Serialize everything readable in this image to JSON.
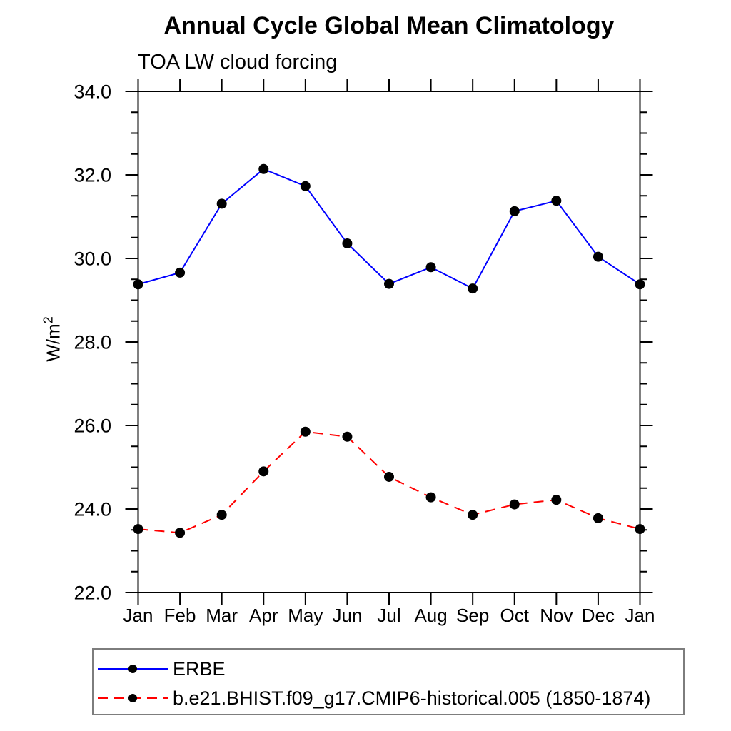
{
  "title": "Annual Cycle Global Mean Climatology",
  "subtitle": "TOA LW cloud forcing",
  "y_axis": {
    "label_base": "W/m",
    "label_exponent": "2"
  },
  "colors": {
    "axis": "#000000",
    "background": "#ffffff",
    "erbe_line": "#0000ff",
    "model_line": "#ff0000",
    "marker": "#000000",
    "legend_border": "#7d7d7d"
  },
  "chart_data": {
    "type": "line",
    "title": "Annual Cycle Global Mean Climatology",
    "subtitle": "TOA LW cloud forcing",
    "xlabel": "",
    "ylabel": "W/m^2",
    "categories": [
      "Jan",
      "Feb",
      "Mar",
      "Apr",
      "May",
      "Jun",
      "Jul",
      "Aug",
      "Sep",
      "Oct",
      "Nov",
      "Dec",
      "Jan"
    ],
    "series": [
      {
        "name": "ERBE",
        "color": "#0000ff",
        "line_style": "solid",
        "marker": "filled-circle",
        "marker_color": "#000000",
        "values": [
          29.38,
          29.66,
          31.31,
          32.14,
          31.73,
          30.36,
          29.39,
          29.79,
          29.28,
          31.13,
          31.38,
          30.04,
          29.38
        ]
      },
      {
        "name": "b.e21.BHIST.f09_g17.CMIP6-historical.005 (1850-1874)",
        "color": "#ff0000",
        "line_style": "dashed",
        "marker": "filled-circle",
        "marker_color": "#000000",
        "values": [
          23.52,
          23.43,
          23.86,
          24.9,
          25.85,
          25.73,
          24.77,
          24.28,
          23.86,
          24.11,
          24.22,
          23.78,
          23.52
        ]
      }
    ],
    "ylim": [
      22.0,
      34.0
    ],
    "ytick_major_step": 2.0,
    "ytick_minor_step": 0.5,
    "ytick_labels": [
      "22.0",
      "24.0",
      "26.0",
      "28.0",
      "30.0",
      "32.0",
      "34.0"
    ],
    "grid": false,
    "legend_position": "below-left"
  }
}
